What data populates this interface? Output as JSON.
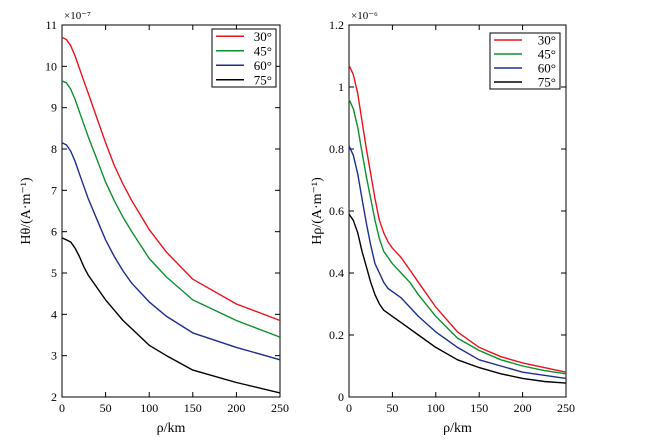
{
  "chart_data": [
    {
      "type": "line",
      "xlabel": "ρ/km",
      "ylabel": "Hθ/(A·m⁻¹)",
      "multiplier": "×10⁻⁷",
      "xlim": [
        0,
        250
      ],
      "ylim": [
        2,
        11
      ],
      "xticks": [
        "0",
        "50",
        "100",
        "150",
        "200",
        "250"
      ],
      "yticks": [
        "2",
        "3",
        "4",
        "5",
        "6",
        "7",
        "8",
        "9",
        "10",
        "11"
      ],
      "legend_position": "top-right",
      "series": [
        {
          "name": "30°",
          "color": "#e8131b",
          "x": [
            0,
            5,
            10,
            15,
            20,
            25,
            30,
            40,
            50,
            60,
            70,
            80,
            100,
            120,
            150,
            200,
            250
          ],
          "y": [
            10.7,
            10.65,
            10.5,
            10.25,
            9.95,
            9.65,
            9.35,
            8.75,
            8.15,
            7.6,
            7.15,
            6.75,
            6.05,
            5.5,
            4.85,
            4.25,
            3.85
          ]
        },
        {
          "name": "45°",
          "color": "#0d8f2e",
          "x": [
            0,
            5,
            10,
            15,
            20,
            25,
            30,
            40,
            50,
            60,
            70,
            80,
            100,
            120,
            150,
            200,
            250
          ],
          "y": [
            9.65,
            9.6,
            9.45,
            9.2,
            8.9,
            8.6,
            8.3,
            7.75,
            7.2,
            6.75,
            6.35,
            6.0,
            5.35,
            4.9,
            4.35,
            3.85,
            3.45
          ]
        },
        {
          "name": "60°",
          "color": "#1f2b8f",
          "x": [
            0,
            5,
            10,
            15,
            20,
            25,
            30,
            40,
            50,
            60,
            70,
            80,
            100,
            120,
            150,
            200,
            250
          ],
          "y": [
            8.15,
            8.1,
            7.95,
            7.7,
            7.4,
            7.1,
            6.8,
            6.3,
            5.8,
            5.4,
            5.05,
            4.75,
            4.3,
            3.95,
            3.55,
            3.2,
            2.9
          ]
        },
        {
          "name": "75°",
          "color": "#000000",
          "x": [
            0,
            5,
            10,
            15,
            20,
            25,
            30,
            40,
            50,
            60,
            70,
            80,
            100,
            120,
            150,
            200,
            250
          ],
          "y": [
            5.85,
            5.8,
            5.75,
            5.6,
            5.4,
            5.15,
            4.95,
            4.65,
            4.35,
            4.1,
            3.85,
            3.65,
            3.25,
            3.0,
            2.65,
            2.35,
            2.1
          ]
        }
      ]
    },
    {
      "type": "line",
      "xlabel": "ρ/km",
      "ylabel": "Hρ/(A·m⁻¹)",
      "multiplier": "×10⁻⁶",
      "xlim": [
        0,
        250
      ],
      "ylim": [
        0,
        1.2
      ],
      "xticks": [
        "0",
        "50",
        "100",
        "150",
        "200",
        "250"
      ],
      "yticks": [
        "0",
        "0.2",
        "0.4",
        "0.6",
        "0.8",
        "1",
        "1.2"
      ],
      "legend_position": "top-right",
      "series": [
        {
          "name": "30°",
          "color": "#e8131b",
          "x": [
            0,
            5,
            10,
            15,
            20,
            25,
            30,
            35,
            40,
            45,
            50,
            60,
            70,
            80,
            100,
            125,
            150,
            175,
            200,
            225,
            250
          ],
          "y": [
            1.07,
            1.04,
            0.98,
            0.89,
            0.8,
            0.72,
            0.64,
            0.57,
            0.53,
            0.5,
            0.48,
            0.45,
            0.41,
            0.37,
            0.29,
            0.21,
            0.16,
            0.13,
            0.11,
            0.095,
            0.08
          ]
        },
        {
          "name": "45°",
          "color": "#0d8f2e",
          "x": [
            0,
            5,
            10,
            15,
            20,
            25,
            30,
            35,
            40,
            45,
            50,
            60,
            70,
            80,
            100,
            125,
            150,
            175,
            200,
            225,
            250
          ],
          "y": [
            0.96,
            0.93,
            0.87,
            0.79,
            0.71,
            0.64,
            0.57,
            0.51,
            0.47,
            0.45,
            0.43,
            0.4,
            0.37,
            0.33,
            0.26,
            0.19,
            0.15,
            0.12,
            0.1,
            0.085,
            0.075
          ]
        },
        {
          "name": "60°",
          "color": "#1f2b8f",
          "x": [
            0,
            5,
            10,
            15,
            20,
            25,
            30,
            35,
            40,
            45,
            50,
            60,
            70,
            80,
            100,
            125,
            150,
            175,
            200,
            225,
            250
          ],
          "y": [
            0.81,
            0.78,
            0.72,
            0.64,
            0.56,
            0.49,
            0.43,
            0.4,
            0.37,
            0.35,
            0.34,
            0.32,
            0.29,
            0.26,
            0.21,
            0.16,
            0.12,
            0.1,
            0.08,
            0.07,
            0.06
          ]
        },
        {
          "name": "75°",
          "color": "#000000",
          "x": [
            0,
            5,
            10,
            15,
            20,
            25,
            30,
            35,
            40,
            45,
            50,
            60,
            70,
            80,
            100,
            125,
            150,
            175,
            200,
            225,
            250
          ],
          "y": [
            0.59,
            0.57,
            0.53,
            0.47,
            0.42,
            0.37,
            0.33,
            0.3,
            0.28,
            0.27,
            0.26,
            0.24,
            0.22,
            0.2,
            0.16,
            0.12,
            0.095,
            0.075,
            0.06,
            0.05,
            0.045
          ]
        }
      ]
    }
  ]
}
